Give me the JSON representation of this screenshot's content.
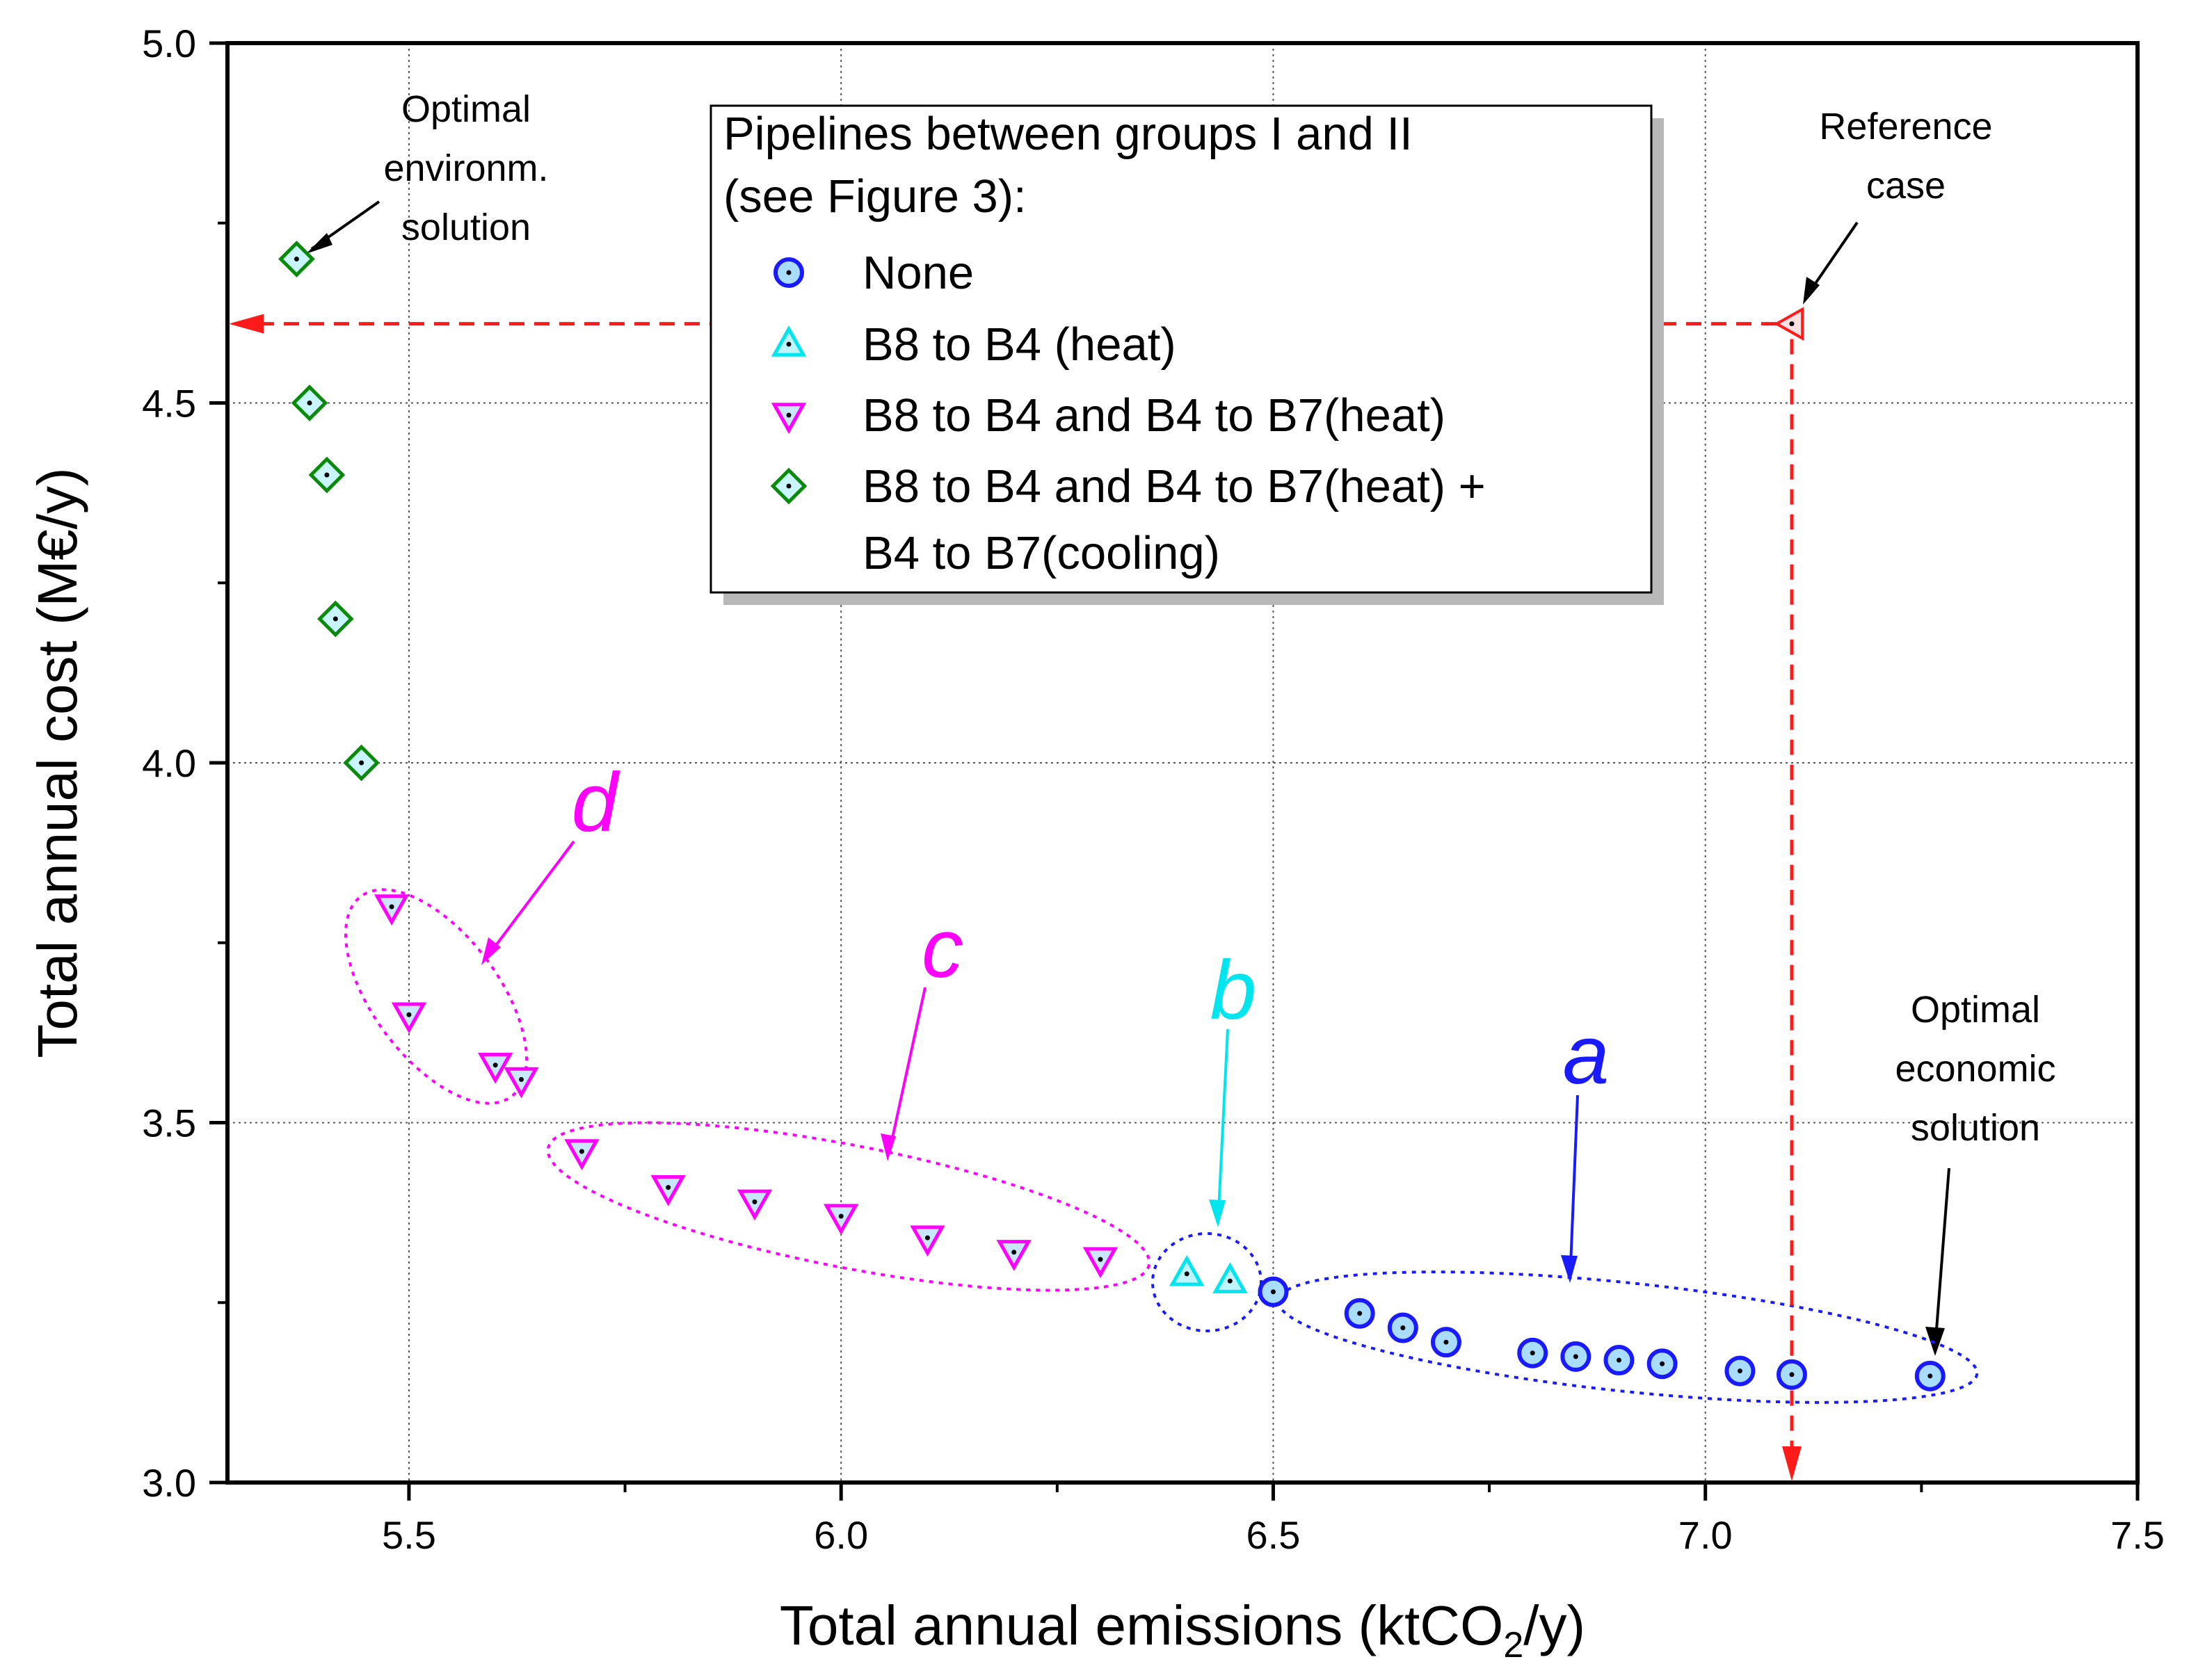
{
  "chart_data": {
    "type": "scatter",
    "xlabel_main": "Total annual emissions (ktCO",
    "xlabel_sub": "2",
    "xlabel_end": "/y)",
    "ylabel": "Total annual cost (M€/y)",
    "xlim": [
      5.29,
      7.5
    ],
    "ylim": [
      3.0,
      5.0
    ],
    "x_ticks": [
      "5.5",
      "6.0",
      "6.5",
      "7.0",
      "7.5"
    ],
    "x_tick_values": [
      5.5,
      6.0,
      6.5,
      7.0,
      7.5
    ],
    "y_ticks": [
      "3.0",
      "3.5",
      "4.0",
      "4.5",
      "5.0"
    ],
    "y_tick_values": [
      3.0,
      3.5,
      4.0,
      4.5,
      5.0
    ],
    "grid": true,
    "legend_title_line1": "Pipelines between groups I and II",
    "legend_title_line2": "(see Figure 3):",
    "series": [
      {
        "name": "None",
        "marker": "circle",
        "color": "#1a1aff",
        "fill": "#a9ddff",
        "x": [
          6.5,
          6.6,
          6.65,
          6.7,
          6.8,
          6.85,
          6.9,
          6.95,
          7.04,
          7.1,
          7.26
        ],
        "y": [
          3.265,
          3.235,
          3.215,
          3.195,
          3.18,
          3.175,
          3.17,
          3.165,
          3.155,
          3.15,
          3.148
        ]
      },
      {
        "name": "B8 to B4 (heat)",
        "marker": "triangle-up",
        "color": "#00e5ee",
        "fill": "#bff5ff",
        "x": [
          6.4,
          6.45
        ],
        "y": [
          3.29,
          3.28
        ]
      },
      {
        "name": "B8 to B4 and B4 to B7(heat)",
        "marker": "triangle-down",
        "color": "#ff00ff",
        "fill": "#c9e6ff",
        "x": [
          5.48,
          5.5,
          5.6,
          5.63,
          5.7,
          5.8,
          5.9,
          6.0,
          6.1,
          6.2,
          6.3
        ],
        "y": [
          3.8,
          3.65,
          3.58,
          3.56,
          3.46,
          3.41,
          3.39,
          3.37,
          3.34,
          3.32,
          3.31
        ]
      },
      {
        "name": "B8 to B4 and B4 to B7(heat) +",
        "name_line2": "B4 to B7(cooling)",
        "marker": "diamond",
        "color": "#0a8a0a",
        "fill": "#c9f5ff",
        "x": [
          5.37,
          5.385,
          5.405,
          5.415,
          5.445
        ],
        "y": [
          4.7,
          4.5,
          4.4,
          4.2,
          4.0
        ]
      }
    ],
    "reference_case": {
      "x": 7.1,
      "y": 4.61,
      "color": "#ff1a1a"
    },
    "annotations": {
      "opt_env": [
        "Optimal",
        "environm.",
        "solution"
      ],
      "reference": [
        "Reference",
        "case"
      ],
      "opt_econ": [
        "Optimal",
        "economic",
        "solution"
      ]
    },
    "group_labels": {
      "a": {
        "text": "a",
        "color": "#1a1aff"
      },
      "b": {
        "text": "b",
        "color": "#00e5ee"
      },
      "c": {
        "text": "c",
        "color": "#ff00ff"
      },
      "d": {
        "text": "d",
        "color": "#ff00ff"
      }
    }
  }
}
